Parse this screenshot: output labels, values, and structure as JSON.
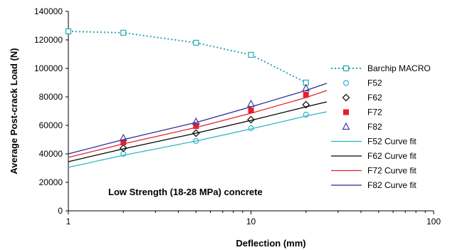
{
  "chart_data": {
    "type": "line",
    "x_scale": "log",
    "xlabel": "Deflection (mm)",
    "ylabel": "Average Post-crack Load (N)",
    "xlim": [
      1,
      100
    ],
    "ylim": [
      0,
      140000
    ],
    "x_ticks": [
      1,
      10,
      100
    ],
    "x_tick_labels": [
      "1",
      "10",
      "100"
    ],
    "y_ticks": [
      0,
      20000,
      40000,
      60000,
      80000,
      100000,
      120000,
      140000
    ],
    "y_tick_labels": [
      "0",
      "20000",
      "40000",
      "60000",
      "80000",
      "100000",
      "120000",
      "140000"
    ],
    "grid": "none",
    "legend_position": "right",
    "annotation": "Low Strength (18-28 MPa) concrete",
    "series": [
      {
        "name": "Barchip MACRO",
        "kind": "line-marker",
        "marker": "open-square",
        "color": "#2aa6b0",
        "dash": "dotted",
        "x": [
          1,
          2,
          5,
          10,
          20
        ],
        "y": [
          126000,
          125000,
          118000,
          109500,
          90000
        ]
      },
      {
        "name": "F52",
        "kind": "marker",
        "marker": "open-circle",
        "color": "#2ab5c8",
        "x": [
          2,
          5,
          10,
          20
        ],
        "y": [
          40000,
          49000,
          58000,
          67500
        ]
      },
      {
        "name": "F62",
        "kind": "marker",
        "marker": "open-diamond",
        "color": "#000000",
        "x": [
          2,
          5,
          10,
          20
        ],
        "y": [
          44000,
          54500,
          64000,
          74500
        ]
      },
      {
        "name": "F72",
        "kind": "marker",
        "marker": "filled-square",
        "color": "#e8202a",
        "x": [
          2,
          5,
          10,
          20
        ],
        "y": [
          48000,
          59500,
          70500,
          81500
        ]
      },
      {
        "name": "F82",
        "kind": "marker",
        "marker": "open-triangle",
        "color": "#3a3aa0",
        "x": [
          2,
          5,
          10,
          20
        ],
        "y": [
          51000,
          62500,
          75000,
          86000
        ]
      },
      {
        "name": "F52 Curve fit",
        "kind": "line",
        "color": "#2ab5c8",
        "x": [
          1,
          2,
          5,
          10,
          20,
          26
        ],
        "y": [
          30500,
          39000,
          49000,
          57500,
          66500,
          69500
        ]
      },
      {
        "name": "F62 Curve fit",
        "kind": "line",
        "color": "#000000",
        "x": [
          1,
          2,
          5,
          10,
          20,
          26
        ],
        "y": [
          34500,
          43500,
          54500,
          63500,
          73000,
          76500
        ]
      },
      {
        "name": "F72 Curve fit",
        "kind": "line",
        "color": "#e8202a",
        "x": [
          1,
          2,
          5,
          10,
          20,
          26
        ],
        "y": [
          37500,
          47000,
          58500,
          68500,
          79500,
          84500
        ]
      },
      {
        "name": "F82 Curve fit",
        "kind": "line",
        "color": "#2a2a90",
        "x": [
          1,
          2,
          5,
          10,
          20,
          26
        ],
        "y": [
          40000,
          50000,
          62000,
          73000,
          84500,
          89500
        ]
      }
    ]
  }
}
